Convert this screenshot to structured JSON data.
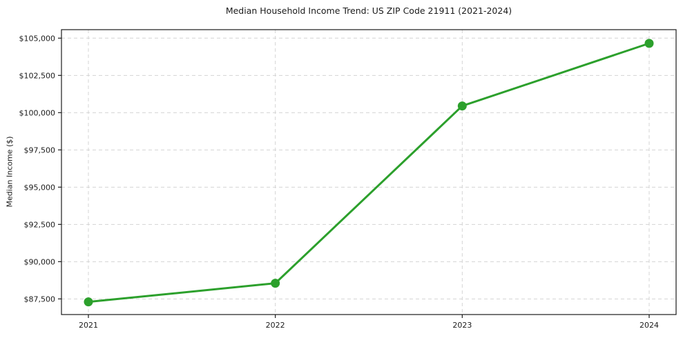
{
  "chart_data": {
    "type": "line",
    "title": "Median Household Income Trend: US ZIP Code 21911 (2021-2024)",
    "xlabel": "",
    "ylabel": "Median Income ($)",
    "categories": [
      "2021",
      "2022",
      "2023",
      "2024"
    ],
    "series": [
      {
        "name": "Median Household Income",
        "values": [
          87300,
          88550,
          100450,
          104650
        ]
      }
    ],
    "ylim": [
      86450,
      105570
    ],
    "ytick_values": [
      87500,
      90000,
      92500,
      95000,
      97500,
      100000,
      102500,
      105000
    ],
    "ytick_labels": [
      "$87,500",
      "$90,000",
      "$92,500",
      "$95,000",
      "$97,500",
      "$100,000",
      "$102,500",
      "$105,000"
    ],
    "grid": true,
    "grid_style": "dashed",
    "legend": "none",
    "line_color": "#2ca02c",
    "marker": "circle",
    "grid_color": "#d4d4d4",
    "spine_color": "#1a1a1a",
    "background_color": "#ffffff"
  }
}
